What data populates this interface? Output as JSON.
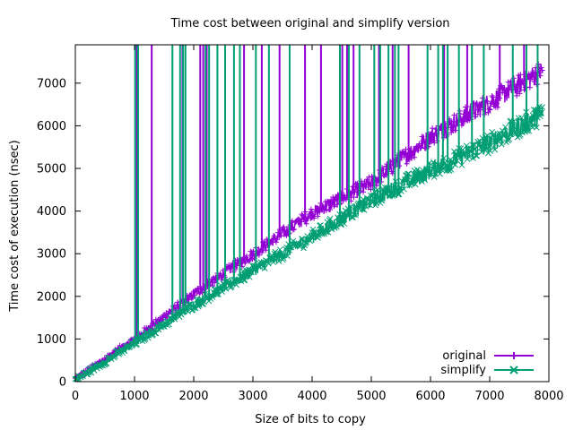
{
  "chart_data": {
    "type": "line",
    "title": "Time cost between original and simplify version",
    "xlabel": "Size of bits to copy",
    "ylabel": "Time cost of execution (nsec)",
    "xlim": [
      0,
      8000
    ],
    "ylim": [
      0,
      7900
    ],
    "xticks": [
      0,
      1000,
      2000,
      3000,
      4000,
      5000,
      6000,
      7000,
      8000
    ],
    "yticks": [
      0,
      1000,
      2000,
      3000,
      4000,
      5000,
      6000,
      7000
    ],
    "grid": false,
    "legend_position": "bottom-right",
    "x_sample_step": 8,
    "series": [
      {
        "name": "original",
        "color": "#9400d3",
        "marker": "plus",
        "trend": [
          [
            0,
            60
          ],
          [
            1000,
            1000
          ],
          [
            2000,
            2050
          ],
          [
            3000,
            3000
          ],
          [
            4000,
            3950
          ],
          [
            5000,
            4650
          ],
          [
            6000,
            5750
          ],
          [
            7000,
            6550
          ],
          [
            7900,
            7300
          ]
        ],
        "spikes_x": [
          1040,
          1290,
          1810,
          2110,
          2160,
          2220,
          2850,
          3150,
          3450,
          3880,
          4150,
          4510,
          4590,
          4700,
          5130,
          5360,
          5630,
          6230,
          6620,
          7170,
          7580
        ]
      },
      {
        "name": "simplify",
        "color": "#009e73",
        "marker": "x",
        "trend": [
          [
            0,
            40
          ],
          [
            1000,
            900
          ],
          [
            2000,
            1800
          ],
          [
            3000,
            2600
          ],
          [
            4000,
            3400
          ],
          [
            5000,
            4250
          ],
          [
            6000,
            4950
          ],
          [
            7000,
            5600
          ],
          [
            7900,
            6300
          ]
        ],
        "spikes_x": [
          1010,
          1060,
          1640,
          1770,
          1820,
          1860,
          2200,
          2260,
          2400,
          2530,
          2680,
          2780,
          3050,
          3270,
          3620,
          4470,
          4620,
          4800,
          5050,
          5150,
          5290,
          5400,
          5460,
          5950,
          6130,
          6210,
          6290,
          6480,
          6700,
          6900,
          7390,
          7620,
          7810
        ]
      }
    ]
  }
}
